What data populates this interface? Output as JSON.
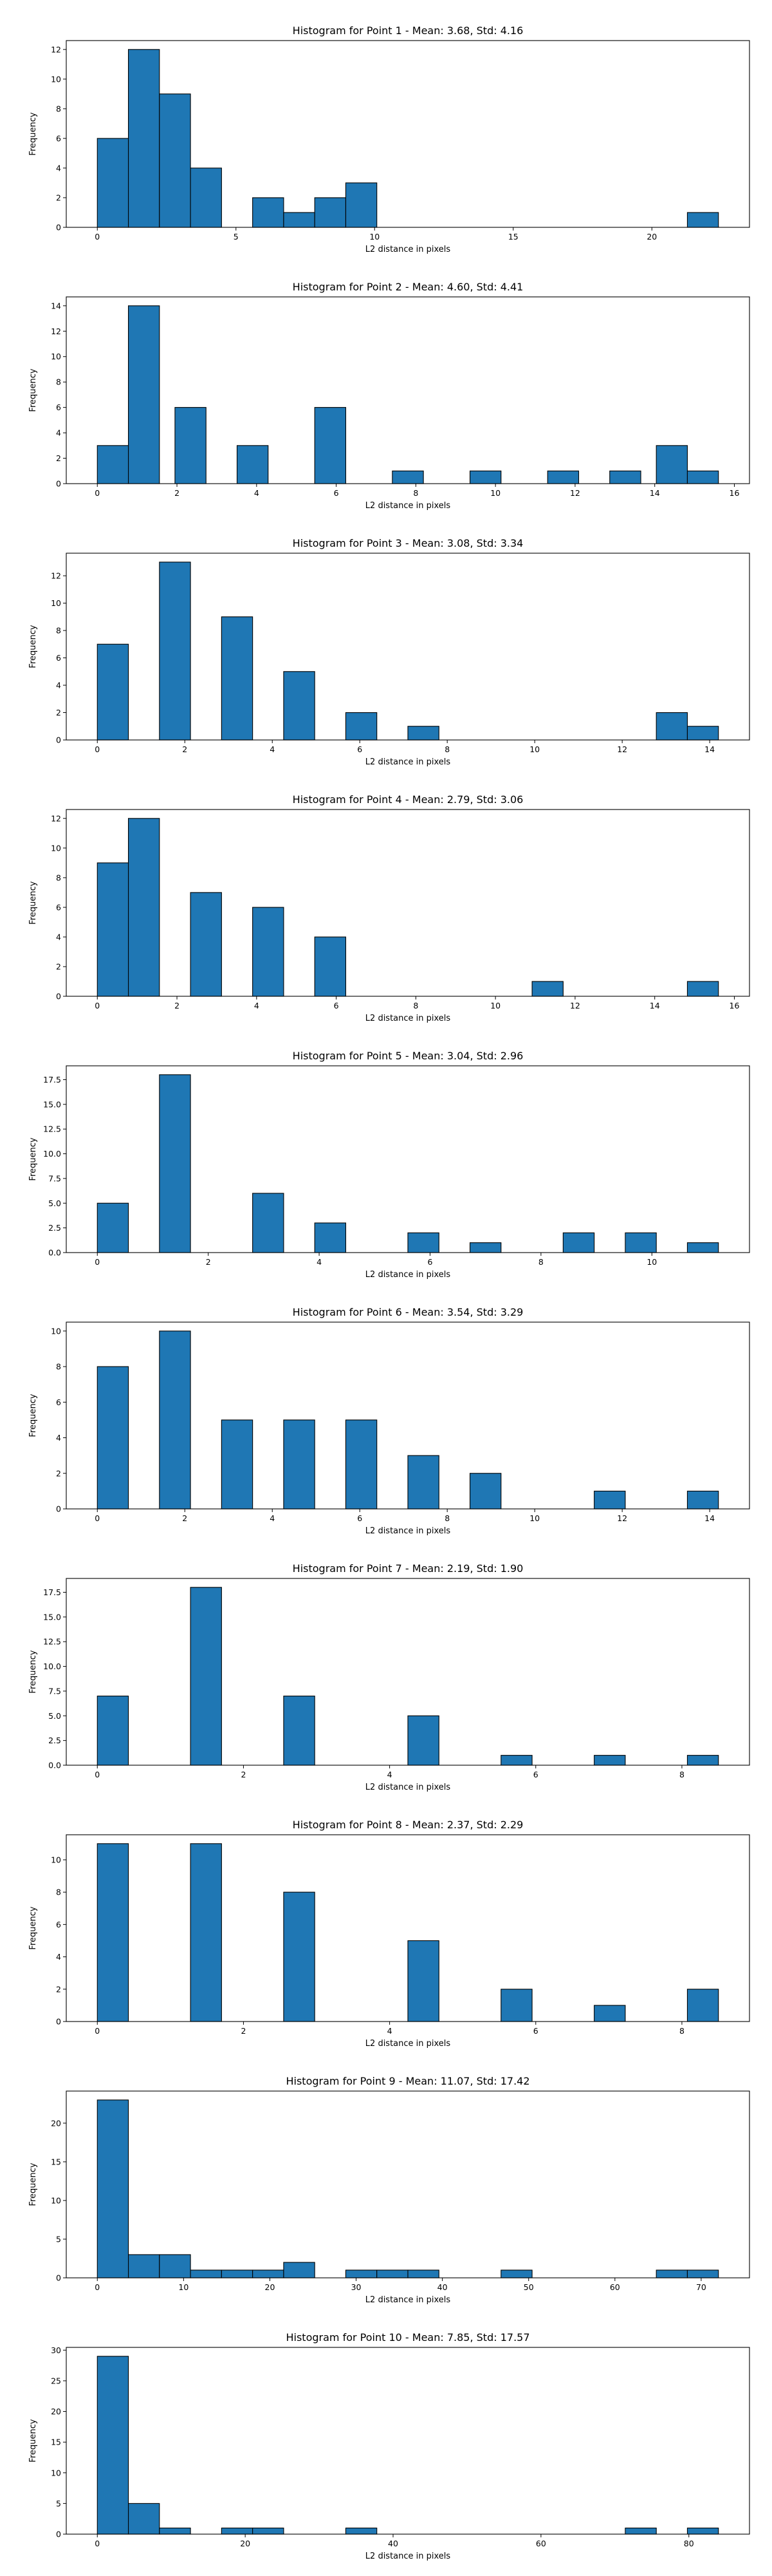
{
  "style": {
    "bar_color": "#1f77b4",
    "edge_color": "#000000"
  },
  "chart_data": [
    {
      "type": "bar",
      "title": "Histogram for Point 1 - Mean: 3.68, Std: 4.16",
      "xlabel": "L2 distance in pixels",
      "ylabel": "Frequency",
      "xlim": [
        -1.12,
        23.52
      ],
      "ylim": [
        0,
        12.6
      ],
      "xticks": [
        0,
        5,
        10,
        15,
        20
      ],
      "xtick_labels": [
        "0",
        "5",
        "10",
        "15",
        "20"
      ],
      "yticks": [
        0,
        2,
        4,
        6,
        8,
        10,
        12
      ],
      "ytick_labels": [
        "0",
        "2",
        "4",
        "6",
        "8",
        "10",
        "12"
      ],
      "bars": [
        {
          "x0": 0.0,
          "x1": 1.12,
          "value": 6
        },
        {
          "x0": 1.12,
          "x1": 2.24,
          "value": 12
        },
        {
          "x0": 2.24,
          "x1": 3.36,
          "value": 9
        },
        {
          "x0": 3.36,
          "x1": 4.48,
          "value": 4
        },
        {
          "x0": 5.6,
          "x1": 6.72,
          "value": 2
        },
        {
          "x0": 6.72,
          "x1": 7.84,
          "value": 1
        },
        {
          "x0": 7.84,
          "x1": 8.96,
          "value": 2
        },
        {
          "x0": 8.96,
          "x1": 10.08,
          "value": 3
        },
        {
          "x0": 21.28,
          "x1": 22.4,
          "value": 1
        }
      ]
    },
    {
      "type": "bar",
      "title": "Histogram for Point 2 - Mean: 4.60, Std: 4.41",
      "xlabel": "L2 distance in pixels",
      "ylabel": "Frequency",
      "xlim": [
        -0.78,
        16.38
      ],
      "ylim": [
        0,
        14.7
      ],
      "xticks": [
        0,
        2,
        4,
        6,
        8,
        10,
        12,
        14,
        16
      ],
      "xtick_labels": [
        "0",
        "2",
        "4",
        "6",
        "8",
        "10",
        "12",
        "14",
        "16"
      ],
      "yticks": [
        0,
        2,
        4,
        6,
        8,
        10,
        12,
        14
      ],
      "ytick_labels": [
        "0",
        "2",
        "4",
        "6",
        "8",
        "10",
        "12",
        "14"
      ],
      "bars": [
        {
          "x0": 0.0,
          "x1": 0.78,
          "value": 3
        },
        {
          "x0": 0.78,
          "x1": 1.56,
          "value": 14
        },
        {
          "x0": 1.95,
          "x1": 2.73,
          "value": 6
        },
        {
          "x0": 3.51,
          "x1": 4.29,
          "value": 3
        },
        {
          "x0": 5.46,
          "x1": 6.24,
          "value": 6
        },
        {
          "x0": 7.41,
          "x1": 8.19,
          "value": 1
        },
        {
          "x0": 9.36,
          "x1": 10.14,
          "value": 1
        },
        {
          "x0": 11.31,
          "x1": 12.09,
          "value": 1
        },
        {
          "x0": 12.87,
          "x1": 13.65,
          "value": 1
        },
        {
          "x0": 14.04,
          "x1": 14.82,
          "value": 3
        },
        {
          "x0": 14.82,
          "x1": 15.6,
          "value": 1
        }
      ]
    },
    {
      "type": "bar",
      "title": "Histogram for Point 3 - Mean: 3.08, Std: 3.34",
      "xlabel": "L2 distance in pixels",
      "ylabel": "Frequency",
      "xlim": [
        -0.71,
        14.91
      ],
      "ylim": [
        0,
        13.65
      ],
      "xticks": [
        0,
        2,
        4,
        6,
        8,
        10,
        12,
        14
      ],
      "xtick_labels": [
        "0",
        "2",
        "4",
        "6",
        "8",
        "10",
        "12",
        "14"
      ],
      "yticks": [
        0,
        2,
        4,
        6,
        8,
        10,
        12
      ],
      "ytick_labels": [
        "0",
        "2",
        "4",
        "6",
        "8",
        "10",
        "12"
      ],
      "bars": [
        {
          "x0": 0.0,
          "x1": 0.71,
          "value": 7
        },
        {
          "x0": 1.42,
          "x1": 2.13,
          "value": 13
        },
        {
          "x0": 2.84,
          "x1": 3.55,
          "value": 9
        },
        {
          "x0": 4.26,
          "x1": 4.97,
          "value": 5
        },
        {
          "x0": 5.68,
          "x1": 6.39,
          "value": 2
        },
        {
          "x0": 7.1,
          "x1": 7.81,
          "value": 1
        },
        {
          "x0": 12.78,
          "x1": 13.49,
          "value": 2
        },
        {
          "x0": 13.49,
          "x1": 14.2,
          "value": 1
        }
      ]
    },
    {
      "type": "bar",
      "title": "Histogram for Point 4 - Mean: 2.79, Std: 3.06",
      "xlabel": "L2 distance in pixels",
      "ylabel": "Frequency",
      "xlim": [
        -0.78,
        16.38
      ],
      "ylim": [
        0,
        12.6
      ],
      "xticks": [
        0,
        2,
        4,
        6,
        8,
        10,
        12,
        14,
        16
      ],
      "xtick_labels": [
        "0",
        "2",
        "4",
        "6",
        "8",
        "10",
        "12",
        "14",
        "16"
      ],
      "yticks": [
        0,
        2,
        4,
        6,
        8,
        10,
        12
      ],
      "ytick_labels": [
        "0",
        "2",
        "4",
        "6",
        "8",
        "10",
        "12"
      ],
      "bars": [
        {
          "x0": 0.0,
          "x1": 0.78,
          "value": 9
        },
        {
          "x0": 0.78,
          "x1": 1.56,
          "value": 12
        },
        {
          "x0": 2.34,
          "x1": 3.12,
          "value": 7
        },
        {
          "x0": 3.9,
          "x1": 4.68,
          "value": 6
        },
        {
          "x0": 5.46,
          "x1": 6.24,
          "value": 4
        },
        {
          "x0": 10.92,
          "x1": 11.7,
          "value": 1
        },
        {
          "x0": 14.82,
          "x1": 15.6,
          "value": 1
        }
      ]
    },
    {
      "type": "bar",
      "title": "Histogram for Point 5 - Mean: 3.04, Std: 2.96",
      "xlabel": "L2 distance in pixels",
      "ylabel": "Frequency",
      "xlim": [
        -0.56,
        11.76
      ],
      "ylim": [
        0,
        18.9
      ],
      "xticks": [
        0,
        2,
        4,
        6,
        8,
        10
      ],
      "xtick_labels": [
        "0",
        "2",
        "4",
        "6",
        "8",
        "10"
      ],
      "yticks": [
        0,
        2.5,
        5,
        7.5,
        10,
        12.5,
        15,
        17.5
      ],
      "ytick_labels": [
        "0.0",
        "2.5",
        "5.0",
        "7.5",
        "10.0",
        "12.5",
        "15.0",
        "17.5"
      ],
      "bars": [
        {
          "x0": 0.0,
          "x1": 0.56,
          "value": 5
        },
        {
          "x0": 1.12,
          "x1": 1.68,
          "value": 18
        },
        {
          "x0": 2.8,
          "x1": 3.36,
          "value": 6
        },
        {
          "x0": 3.92,
          "x1": 4.48,
          "value": 3
        },
        {
          "x0": 5.6,
          "x1": 6.16,
          "value": 2
        },
        {
          "x0": 6.72,
          "x1": 7.28,
          "value": 1
        },
        {
          "x0": 8.4,
          "x1": 8.96,
          "value": 2
        },
        {
          "x0": 9.52,
          "x1": 10.08,
          "value": 2
        },
        {
          "x0": 10.64,
          "x1": 11.2,
          "value": 1
        }
      ]
    },
    {
      "type": "bar",
      "title": "Histogram for Point 6 - Mean: 3.54, Std: 3.29",
      "xlabel": "L2 distance in pixels",
      "ylabel": "Frequency",
      "xlim": [
        -0.71,
        14.91
      ],
      "ylim": [
        0,
        10.5
      ],
      "xticks": [
        0,
        2,
        4,
        6,
        8,
        10,
        12,
        14
      ],
      "xtick_labels": [
        "0",
        "2",
        "4",
        "6",
        "8",
        "10",
        "12",
        "14"
      ],
      "yticks": [
        0,
        2,
        4,
        6,
        8,
        10
      ],
      "ytick_labels": [
        "0",
        "2",
        "4",
        "6",
        "8",
        "10"
      ],
      "bars": [
        {
          "x0": 0.0,
          "x1": 0.71,
          "value": 8
        },
        {
          "x0": 1.42,
          "x1": 2.13,
          "value": 10
        },
        {
          "x0": 2.84,
          "x1": 3.55,
          "value": 5
        },
        {
          "x0": 4.26,
          "x1": 4.97,
          "value": 5
        },
        {
          "x0": 5.68,
          "x1": 6.39,
          "value": 5
        },
        {
          "x0": 7.1,
          "x1": 7.81,
          "value": 3
        },
        {
          "x0": 8.52,
          "x1": 9.23,
          "value": 2
        },
        {
          "x0": 11.36,
          "x1": 12.07,
          "value": 1
        },
        {
          "x0": 13.49,
          "x1": 14.2,
          "value": 1
        }
      ]
    },
    {
      "type": "bar",
      "title": "Histogram for Point 7 - Mean: 2.19, Std: 1.90",
      "xlabel": "L2 distance in pixels",
      "ylabel": "Frequency",
      "xlim": [
        -0.425,
        8.925
      ],
      "ylim": [
        0,
        18.9
      ],
      "xticks": [
        0,
        2,
        4,
        6,
        8
      ],
      "xtick_labels": [
        "0",
        "2",
        "4",
        "6",
        "8"
      ],
      "yticks": [
        0,
        2.5,
        5,
        7.5,
        10,
        12.5,
        15,
        17.5
      ],
      "ytick_labels": [
        "0.0",
        "2.5",
        "5.0",
        "7.5",
        "10.0",
        "12.5",
        "15.0",
        "17.5"
      ],
      "bars": [
        {
          "x0": 0.0,
          "x1": 0.425,
          "value": 7
        },
        {
          "x0": 1.275,
          "x1": 1.7,
          "value": 18
        },
        {
          "x0": 2.55,
          "x1": 2.975,
          "value": 7
        },
        {
          "x0": 4.25,
          "x1": 4.675,
          "value": 5
        },
        {
          "x0": 5.525,
          "x1": 5.95,
          "value": 1
        },
        {
          "x0": 6.8,
          "x1": 7.225,
          "value": 1
        },
        {
          "x0": 8.075,
          "x1": 8.5,
          "value": 1
        }
      ]
    },
    {
      "type": "bar",
      "title": "Histogram for Point 8 - Mean: 2.37, Std: 2.29",
      "xlabel": "L2 distance in pixels",
      "ylabel": "Frequency",
      "xlim": [
        -0.425,
        8.925
      ],
      "ylim": [
        0,
        11.55
      ],
      "xticks": [
        0,
        2,
        4,
        6,
        8
      ],
      "xtick_labels": [
        "0",
        "2",
        "4",
        "6",
        "8"
      ],
      "yticks": [
        0,
        2,
        4,
        6,
        8,
        10
      ],
      "ytick_labels": [
        "0",
        "2",
        "4",
        "6",
        "8",
        "10"
      ],
      "bars": [
        {
          "x0": 0.0,
          "x1": 0.425,
          "value": 11
        },
        {
          "x0": 1.275,
          "x1": 1.7,
          "value": 11
        },
        {
          "x0": 2.55,
          "x1": 2.975,
          "value": 8
        },
        {
          "x0": 4.25,
          "x1": 4.675,
          "value": 5
        },
        {
          "x0": 5.525,
          "x1": 5.95,
          "value": 2
        },
        {
          "x0": 6.8,
          "x1": 7.225,
          "value": 1
        },
        {
          "x0": 8.075,
          "x1": 8.5,
          "value": 2
        }
      ]
    },
    {
      "type": "bar",
      "title": "Histogram for Point 9 - Mean: 11.07, Std: 17.42",
      "xlabel": "L2 distance in pixels",
      "ylabel": "Frequency",
      "xlim": [
        -3.6,
        75.6
      ],
      "ylim": [
        0,
        24.15
      ],
      "xticks": [
        0,
        10,
        20,
        30,
        40,
        50,
        60,
        70
      ],
      "xtick_labels": [
        "0",
        "10",
        "20",
        "30",
        "40",
        "50",
        "60",
        "70"
      ],
      "yticks": [
        0,
        5,
        10,
        15,
        20
      ],
      "ytick_labels": [
        "0",
        "5",
        "10",
        "15",
        "20"
      ],
      "bars": [
        {
          "x0": 0.0,
          "x1": 3.6,
          "value": 23
        },
        {
          "x0": 3.6,
          "x1": 7.2,
          "value": 3
        },
        {
          "x0": 7.2,
          "x1": 10.8,
          "value": 3
        },
        {
          "x0": 10.8,
          "x1": 14.4,
          "value": 1
        },
        {
          "x0": 14.4,
          "x1": 18.0,
          "value": 1
        },
        {
          "x0": 18.0,
          "x1": 21.6,
          "value": 1
        },
        {
          "x0": 21.6,
          "x1": 25.2,
          "value": 2
        },
        {
          "x0": 28.8,
          "x1": 32.4,
          "value": 1
        },
        {
          "x0": 32.4,
          "x1": 36.0,
          "value": 1
        },
        {
          "x0": 36.0,
          "x1": 39.6,
          "value": 1
        },
        {
          "x0": 46.8,
          "x1": 50.4,
          "value": 1
        },
        {
          "x0": 64.8,
          "x1": 68.4,
          "value": 1
        },
        {
          "x0": 68.4,
          "x1": 72.0,
          "value": 1
        }
      ]
    },
    {
      "type": "bar",
      "title": "Histogram for Point 10 - Mean: 7.85, Std: 17.57",
      "xlabel": "L2 distance in pixels",
      "ylabel": "Frequency",
      "xlim": [
        -4.2,
        88.2
      ],
      "ylim": [
        0,
        30.45
      ],
      "xticks": [
        0,
        20,
        40,
        60,
        80
      ],
      "xtick_labels": [
        "0",
        "20",
        "40",
        "60",
        "80"
      ],
      "yticks": [
        0,
        5,
        10,
        15,
        20,
        25,
        30
      ],
      "ytick_labels": [
        "0",
        "5",
        "10",
        "15",
        "20",
        "25",
        "30"
      ],
      "bars": [
        {
          "x0": 0.0,
          "x1": 4.2,
          "value": 29
        },
        {
          "x0": 4.2,
          "x1": 8.4,
          "value": 5
        },
        {
          "x0": 8.4,
          "x1": 12.6,
          "value": 1
        },
        {
          "x0": 16.8,
          "x1": 21.0,
          "value": 1
        },
        {
          "x0": 21.0,
          "x1": 25.2,
          "value": 1
        },
        {
          "x0": 33.6,
          "x1": 37.8,
          "value": 1
        },
        {
          "x0": 71.4,
          "x1": 75.6,
          "value": 1
        },
        {
          "x0": 79.8,
          "x1": 84.0,
          "value": 1
        }
      ]
    }
  ]
}
